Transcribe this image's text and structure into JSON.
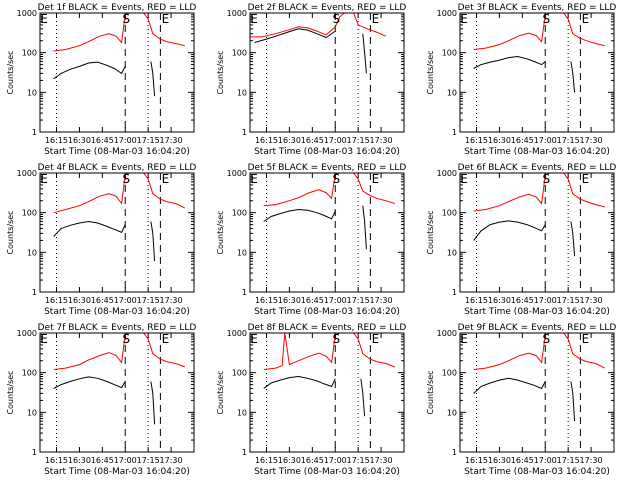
{
  "chart_data": [
    {
      "type": "line",
      "title": "Det 1f BLACK = Events, RED = LLD",
      "ylabel": "Counts/sec",
      "xlabel": "Start Time (08-Mar-03 16:04:20)",
      "xticks": [
        "16:15",
        "16:30",
        "16:45",
        "17:00",
        "17:15",
        "17:30"
      ],
      "yticks": [
        "1",
        "10",
        "100",
        "1000"
      ],
      "ylim": [
        1,
        1000
      ],
      "yscale": "log",
      "markers": {
        "S": "17:00",
        "E": "17:23"
      },
      "series": [
        {
          "color": "#ff0000",
          "x": [
            16.22,
            16.35,
            16.5,
            16.6,
            16.72,
            16.82,
            16.9,
            16.96,
            17.0,
            17.05,
            17.1,
            17.2,
            17.25,
            17.3,
            17.38,
            17.45,
            17.55,
            17.65
          ],
          "y": [
            110,
            120,
            150,
            190,
            260,
            300,
            260,
            180,
            900,
            1300,
            1300,
            1300,
            700,
            300,
            220,
            190,
            170,
            150
          ]
        },
        {
          "color": "#000000",
          "x": [
            16.22,
            16.3,
            16.4,
            16.5,
            16.6,
            16.7,
            16.8,
            16.88,
            16.96,
            17.0
          ],
          "y": [
            22,
            30,
            38,
            45,
            55,
            58,
            48,
            40,
            30,
            45
          ]
        },
        {
          "color": "#000000",
          "x": [
            17.28,
            17.3,
            17.32
          ],
          "y": [
            60,
            30,
            8
          ]
        }
      ]
    },
    {
      "type": "line",
      "title": "Det 2f BLACK = Events, RED = LLD",
      "ylabel": "Counts/sec",
      "xlabel": "Start Time (08-Mar-03 16:04:20)",
      "xticks": [
        "16:15",
        "16:30",
        "16:45",
        "17:00",
        "17:15",
        "17:30"
      ],
      "yticks": [
        "1",
        "10",
        "100",
        "1000"
      ],
      "ylim": [
        1,
        1000
      ],
      "yscale": "log",
      "markers": {
        "S": "17:00",
        "E": "17:23"
      },
      "series": [
        {
          "color": "#ff0000",
          "x": [
            16.07,
            16.2,
            16.35,
            16.5,
            16.6,
            16.7,
            16.8,
            16.9,
            17.0,
            17.05,
            17.1,
            17.2,
            17.25,
            17.35,
            17.45,
            17.55
          ],
          "y": [
            250,
            250,
            300,
            380,
            450,
            420,
            350,
            280,
            450,
            800,
            1000,
            1000,
            500,
            400,
            330,
            260
          ]
        },
        {
          "color": "#000000",
          "x": [
            16.12,
            16.25,
            16.35,
            16.5,
            16.6,
            16.7,
            16.8,
            16.9,
            17.0
          ],
          "y": [
            180,
            220,
            260,
            340,
            400,
            370,
            300,
            240,
            350
          ]
        },
        {
          "color": "#000000",
          "x": [
            17.3,
            17.32,
            17.34
          ],
          "y": [
            300,
            100,
            30
          ]
        }
      ]
    },
    {
      "type": "line",
      "title": "Det 3f BLACK = Events, RED = LLD",
      "ylabel": "Counts/sec",
      "xlabel": "Start Time (08-Mar-03 16:04:20)",
      "xticks": [
        "16:15",
        "16:30",
        "16:45",
        "17:00",
        "17:15",
        "17:30"
      ],
      "yticks": [
        "1",
        "10",
        "100",
        "1000"
      ],
      "ylim": [
        1,
        1000
      ],
      "yscale": "log",
      "markers": {
        "S": "17:00",
        "E": "17:23"
      },
      "series": [
        {
          "color": "#ff0000",
          "x": [
            16.22,
            16.35,
            16.5,
            16.6,
            16.72,
            16.82,
            16.9,
            16.96,
            17.0,
            17.05,
            17.1,
            17.2,
            17.25,
            17.3,
            17.38,
            17.45,
            17.55,
            17.65
          ],
          "y": [
            120,
            130,
            160,
            200,
            270,
            310,
            270,
            190,
            900,
            1300,
            1300,
            1300,
            700,
            300,
            230,
            200,
            170,
            150
          ]
        },
        {
          "color": "#000000",
          "x": [
            16.22,
            16.3,
            16.4,
            16.5,
            16.6,
            16.7,
            16.8,
            16.88,
            16.96,
            17.0
          ],
          "y": [
            40,
            50,
            58,
            65,
            75,
            80,
            70,
            60,
            50,
            60
          ]
        },
        {
          "color": "#000000",
          "x": [
            17.28,
            17.3,
            17.32
          ],
          "y": [
            60,
            30,
            10
          ]
        }
      ]
    },
    {
      "type": "line",
      "title": "Det 4f BLACK = Events, RED = LLD",
      "ylabel": "Counts/sec",
      "xlabel": "Start Time (08-Mar-03 16:04:20)",
      "xticks": [
        "16:15",
        "16:30",
        "16:45",
        "17:00",
        "17:15",
        "17:30"
      ],
      "yticks": [
        "1",
        "10",
        "100",
        "1000"
      ],
      "ylim": [
        1,
        1000
      ],
      "yscale": "log",
      "markers": {
        "S": "17:00",
        "E": "17:23"
      },
      "series": [
        {
          "color": "#ff0000",
          "x": [
            16.22,
            16.35,
            16.5,
            16.6,
            16.72,
            16.82,
            16.9,
            16.96,
            17.0,
            17.05,
            17.1,
            17.2,
            17.25,
            17.3,
            17.38,
            17.45,
            17.55,
            17.65
          ],
          "y": [
            100,
            120,
            150,
            190,
            260,
            300,
            260,
            170,
            900,
            1300,
            1300,
            1300,
            700,
            300,
            220,
            190,
            170,
            130
          ]
        },
        {
          "color": "#000000",
          "x": [
            16.22,
            16.3,
            16.4,
            16.5,
            16.6,
            16.7,
            16.8,
            16.88,
            16.96,
            17.0
          ],
          "y": [
            25,
            40,
            48,
            55,
            60,
            55,
            45,
            38,
            32,
            50
          ]
        },
        {
          "color": "#000000",
          "x": [
            17.28,
            17.3,
            17.32
          ],
          "y": [
            60,
            30,
            6
          ]
        }
      ]
    },
    {
      "type": "line",
      "title": "Det 5f BLACK = Events, RED = LLD",
      "ylabel": "Counts/sec",
      "xlabel": "Start Time (08-Mar-03 16:04:20)",
      "xticks": [
        "16:15",
        "16:30",
        "16:45",
        "17:00",
        "17:15",
        "17:30"
      ],
      "yticks": [
        "1",
        "10",
        "100",
        "1000"
      ],
      "ylim": [
        1,
        1000
      ],
      "yscale": "log",
      "markers": {
        "S": "17:00",
        "E": "17:23"
      },
      "series": [
        {
          "color": "#ff0000",
          "x": [
            16.22,
            16.35,
            16.5,
            16.6,
            16.72,
            16.82,
            16.9,
            16.96,
            17.0,
            17.05,
            17.1,
            17.2,
            17.25,
            17.3,
            17.38,
            17.45,
            17.55,
            17.65
          ],
          "y": [
            150,
            160,
            200,
            240,
            320,
            380,
            320,
            230,
            950,
            1300,
            1300,
            1300,
            700,
            350,
            270,
            230,
            200,
            170
          ]
        },
        {
          "color": "#000000",
          "x": [
            16.22,
            16.3,
            16.4,
            16.5,
            16.6,
            16.7,
            16.8,
            16.88,
            16.96,
            17.0
          ],
          "y": [
            60,
            80,
            95,
            110,
            120,
            115,
            100,
            85,
            70,
            110
          ]
        },
        {
          "color": "#000000",
          "x": [
            17.3,
            17.32,
            17.34
          ],
          "y": [
            150,
            60,
            12
          ]
        }
      ]
    },
    {
      "type": "line",
      "title": "Det 6f BLACK = Events, RED = LLD",
      "ylabel": "Counts/sec",
      "xlabel": "Start Time (08-Mar-03 16:04:20)",
      "xticks": [
        "16:15",
        "16:30",
        "16:45",
        "17:00",
        "17:15",
        "17:30"
      ],
      "yticks": [
        "1",
        "10",
        "100",
        "1000"
      ],
      "ylim": [
        1,
        1000
      ],
      "yscale": "log",
      "markers": {
        "S": "17:00",
        "E": "17:23"
      },
      "series": [
        {
          "color": "#ff0000",
          "x": [
            16.22,
            16.35,
            16.5,
            16.6,
            16.72,
            16.82,
            16.9,
            16.96,
            17.0,
            17.05,
            17.1,
            17.2,
            17.25,
            17.3,
            17.38,
            17.45,
            17.55,
            17.65
          ],
          "y": [
            110,
            120,
            150,
            190,
            250,
            290,
            250,
            170,
            900,
            1300,
            1300,
            1300,
            700,
            300,
            220,
            190,
            160,
            140
          ]
        },
        {
          "color": "#000000",
          "x": [
            16.22,
            16.3,
            16.4,
            16.5,
            16.6,
            16.7,
            16.8,
            16.88,
            16.96,
            17.0
          ],
          "y": [
            20,
            35,
            50,
            58,
            62,
            58,
            50,
            42,
            35,
            50
          ]
        },
        {
          "color": "#000000",
          "x": [
            17.28,
            17.3,
            17.32
          ],
          "y": [
            60,
            30,
            8
          ]
        }
      ]
    },
    {
      "type": "line",
      "title": "Det 7f BLACK = Events, RED = LLD",
      "ylabel": "Counts/sec",
      "xlabel": "Start Time (08-Mar-03 16:04:20)",
      "xticks": [
        "16:15",
        "16:30",
        "16:45",
        "17:00",
        "17:15",
        "17:30"
      ],
      "yticks": [
        "1",
        "10",
        "100",
        "1000"
      ],
      "ylim": [
        1,
        1000
      ],
      "yscale": "log",
      "markers": {
        "S": "17:00",
        "E": "17:23"
      },
      "series": [
        {
          "color": "#ff0000",
          "x": [
            16.22,
            16.35,
            16.5,
            16.6,
            16.72,
            16.82,
            16.9,
            16.96,
            17.0,
            17.05,
            17.1,
            17.2,
            17.25,
            17.3,
            17.38,
            17.45,
            17.55,
            17.65
          ],
          "y": [
            120,
            130,
            160,
            210,
            270,
            320,
            270,
            180,
            900,
            1300,
            1300,
            1300,
            700,
            300,
            220,
            190,
            170,
            140
          ]
        },
        {
          "color": "#000000",
          "x": [
            16.22,
            16.3,
            16.4,
            16.5,
            16.6,
            16.7,
            16.8,
            16.88,
            16.96,
            17.0
          ],
          "y": [
            40,
            50,
            60,
            70,
            78,
            72,
            60,
            50,
            42,
            60
          ]
        },
        {
          "color": "#000000",
          "x": [
            17.28,
            17.3,
            17.32
          ],
          "y": [
            60,
            30,
            5
          ]
        }
      ]
    },
    {
      "type": "line",
      "title": "Det 8f BLACK = Events, RED = LLD",
      "ylabel": "Counts/sec",
      "xlabel": "Start Time (08-Mar-03 16:04:20)",
      "xticks": [
        "16:15",
        "16:30",
        "16:45",
        "17:00",
        "17:15",
        "17:30"
      ],
      "yticks": [
        "1",
        "10",
        "100",
        "1000"
      ],
      "ylim": [
        1,
        1000
      ],
      "yscale": "log",
      "markers": {
        "S": "17:00",
        "E": "17:23"
      },
      "series": [
        {
          "color": "#ff0000",
          "x": [
            16.22,
            16.35,
            16.42,
            16.45,
            16.5,
            16.6,
            16.72,
            16.82,
            16.9,
            16.96,
            17.0,
            17.05,
            17.1,
            17.2,
            17.25,
            17.3,
            17.38,
            17.45,
            17.55,
            17.65
          ],
          "y": [
            120,
            130,
            150,
            1300,
            160,
            200,
            260,
            310,
            260,
            180,
            900,
            1300,
            1300,
            1300,
            700,
            300,
            220,
            190,
            170,
            140
          ]
        },
        {
          "color": "#000000",
          "x": [
            16.22,
            16.3,
            16.4,
            16.5,
            16.6,
            16.7,
            16.8,
            16.88,
            16.96,
            17.0
          ],
          "y": [
            40,
            55,
            65,
            75,
            80,
            72,
            62,
            52,
            45,
            70
          ]
        },
        {
          "color": "#000000",
          "x": [
            17.28,
            17.3,
            17.32
          ],
          "y": [
            70,
            30,
            8
          ]
        }
      ]
    },
    {
      "type": "line",
      "title": "Det 9f BLACK = Events, RED = LLD",
      "ylabel": "Counts/sec",
      "xlabel": "Start Time (08-Mar-03 16:04:20)",
      "xticks": [
        "16:15",
        "16:30",
        "16:45",
        "17:00",
        "17:15",
        "17:30"
      ],
      "yticks": [
        "1",
        "10",
        "100",
        "1000"
      ],
      "ylim": [
        1,
        1000
      ],
      "yscale": "log",
      "markers": {
        "S": "17:00",
        "E": "17:23"
      },
      "series": [
        {
          "color": "#ff0000",
          "x": [
            16.22,
            16.35,
            16.5,
            16.6,
            16.72,
            16.82,
            16.9,
            16.96,
            17.0,
            17.05,
            17.1,
            17.2,
            17.25,
            17.3,
            17.38,
            17.45,
            17.55,
            17.65
          ],
          "y": [
            120,
            130,
            160,
            200,
            270,
            310,
            270,
            180,
            900,
            1300,
            1300,
            1300,
            700,
            300,
            220,
            190,
            170,
            130
          ]
        },
        {
          "color": "#000000",
          "x": [
            16.22,
            16.3,
            16.4,
            16.5,
            16.6,
            16.7,
            16.8,
            16.88,
            16.96,
            17.0
          ],
          "y": [
            30,
            45,
            55,
            65,
            72,
            65,
            55,
            48,
            40,
            60
          ]
        },
        {
          "color": "#000000",
          "x": [
            17.28,
            17.3,
            17.32
          ],
          "y": [
            60,
            30,
            6
          ]
        }
      ]
    }
  ]
}
